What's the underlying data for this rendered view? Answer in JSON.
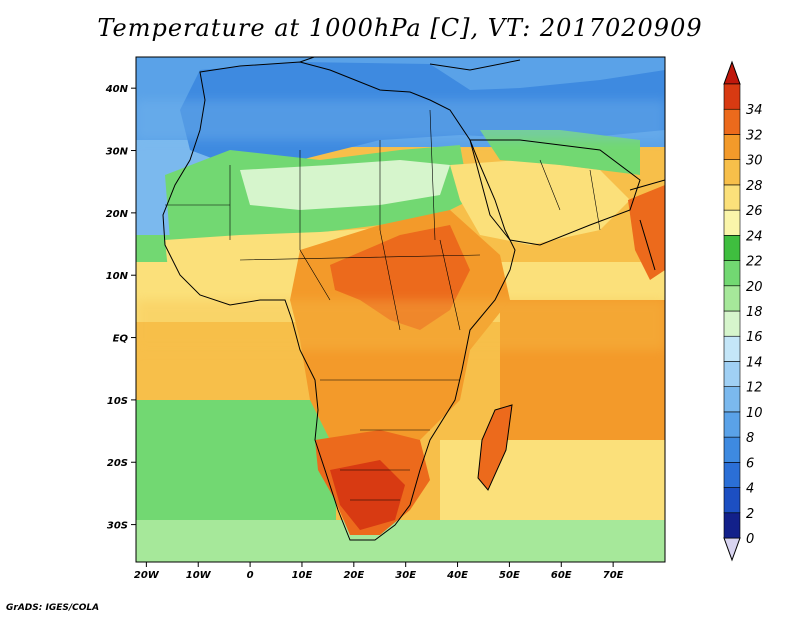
{
  "title": "Temperature at 1000hPa [C], VT: 2017020909",
  "footer": "GrADS: IGES/COLA",
  "map": {
    "lon_range": [
      -22,
      80
    ],
    "lat_range": [
      -36,
      45
    ],
    "lon_ticks": [
      {
        "value": -20,
        "label": "20W"
      },
      {
        "value": -10,
        "label": "10W"
      },
      {
        "value": 0,
        "label": "0"
      },
      {
        "value": 10,
        "label": "10E"
      },
      {
        "value": 20,
        "label": "20E"
      },
      {
        "value": 30,
        "label": "30E"
      },
      {
        "value": 40,
        "label": "40E"
      },
      {
        "value": 50,
        "label": "50E"
      },
      {
        "value": 60,
        "label": "60E"
      },
      {
        "value": 70,
        "label": "70E"
      }
    ],
    "lat_ticks": [
      {
        "value": 40,
        "label": "40N"
      },
      {
        "value": 30,
        "label": "30N"
      },
      {
        "value": 20,
        "label": "20N"
      },
      {
        "value": 10,
        "label": "10N"
      },
      {
        "value": 0,
        "label": "EQ"
      },
      {
        "value": -10,
        "label": "10S"
      },
      {
        "value": -20,
        "label": "20S"
      },
      {
        "value": -30,
        "label": "30S"
      }
    ]
  },
  "colorbar": {
    "levels": [
      "0",
      "2",
      "4",
      "6",
      "8",
      "10",
      "12",
      "14",
      "16",
      "18",
      "20",
      "22",
      "24",
      "26",
      "28",
      "30",
      "32",
      "34"
    ],
    "colors": [
      "#12208a",
      "#1c4fc2",
      "#2b6fd6",
      "#3e8ae0",
      "#5aa2e8",
      "#7bb9ee",
      "#a0d0f4",
      "#c4e6f8",
      "#d6f5cc",
      "#a6e89a",
      "#72d872",
      "#3fbe3f",
      "#faf5aa",
      "#fbe07a",
      "#f7bf4a",
      "#f39a2a",
      "#ec6a1c",
      "#d83a12"
    ],
    "over_color": "#c0180c",
    "under_color": "#d8d4f0"
  }
}
